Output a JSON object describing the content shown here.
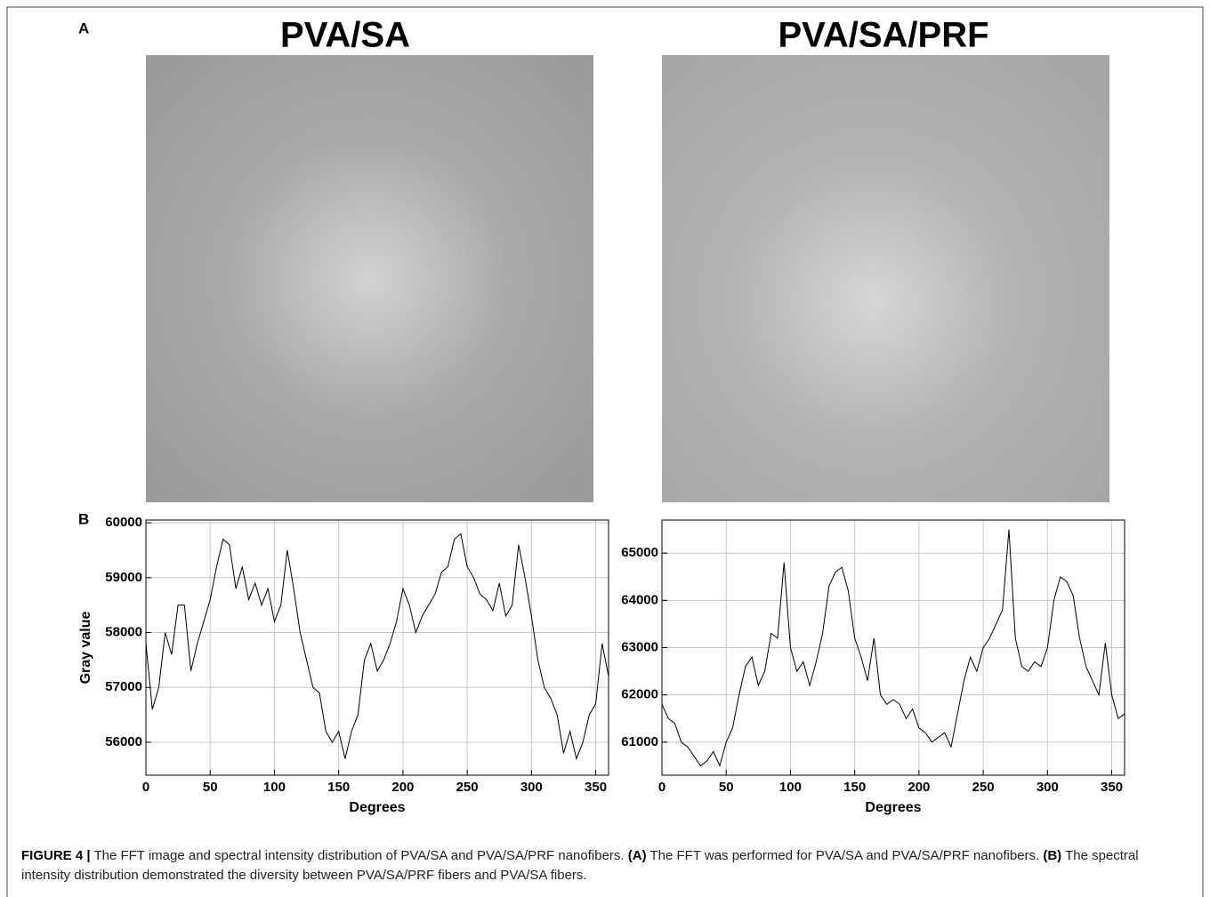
{
  "panel_labels": [
    "A",
    "B"
  ],
  "image_titles": [
    "PVA/SA",
    "PVA/SA/PRF"
  ],
  "chart_data": [
    {
      "type": "line",
      "xlabel": "Degrees",
      "ylabel": "Gray value",
      "x": [
        0,
        5,
        10,
        15,
        20,
        25,
        30,
        35,
        40,
        45,
        50,
        55,
        60,
        65,
        70,
        75,
        80,
        85,
        90,
        95,
        100,
        105,
        110,
        115,
        120,
        125,
        130,
        135,
        140,
        145,
        150,
        155,
        160,
        165,
        170,
        175,
        180,
        185,
        190,
        195,
        200,
        205,
        210,
        215,
        220,
        225,
        230,
        235,
        240,
        245,
        250,
        255,
        260,
        265,
        270,
        275,
        280,
        285,
        290,
        295,
        300,
        305,
        310,
        315,
        320,
        325,
        330,
        335,
        340,
        345,
        350,
        355,
        360
      ],
      "series": [
        {
          "color": "#000000",
          "values": [
            57800,
            56600,
            57000,
            58000,
            57600,
            58500,
            58500,
            57300,
            57800,
            58200,
            58600,
            59200,
            59700,
            59600,
            58800,
            59200,
            58600,
            58900,
            58500,
            58800,
            58200,
            58500,
            59500,
            58800,
            58000,
            57500,
            57000,
            56900,
            56200,
            56000,
            56200,
            55700,
            56200,
            56500,
            57500,
            57800,
            57300,
            57500,
            57800,
            58200,
            58800,
            58500,
            58000,
            58300,
            58500,
            58700,
            59100,
            59200,
            59700,
            59800,
            59200,
            59000,
            58700,
            58600,
            58400,
            58900,
            58300,
            58500,
            59600,
            59000,
            58300,
            57500,
            57000,
            56800,
            56500,
            55800,
            56200,
            55700,
            56000,
            56500,
            56700,
            57800,
            57200
          ]
        }
      ],
      "xlim": [
        0,
        360
      ],
      "ylim": [
        55400,
        60050
      ],
      "xticks": [
        0,
        50,
        100,
        150,
        200,
        250,
        300,
        350
      ],
      "yticks": [
        56000,
        57000,
        58000,
        59000,
        60000
      ],
      "grid": true
    },
    {
      "type": "line",
      "xlabel": "Degrees",
      "x": [
        0,
        5,
        10,
        15,
        20,
        25,
        30,
        35,
        40,
        45,
        50,
        55,
        60,
        65,
        70,
        75,
        80,
        85,
        90,
        95,
        100,
        105,
        110,
        115,
        120,
        125,
        130,
        135,
        140,
        145,
        150,
        155,
        160,
        165,
        170,
        175,
        180,
        185,
        190,
        195,
        200,
        205,
        210,
        215,
        220,
        225,
        230,
        235,
        240,
        245,
        250,
        255,
        260,
        265,
        270,
        275,
        280,
        285,
        290,
        295,
        300,
        305,
        310,
        315,
        320,
        325,
        330,
        335,
        340,
        345,
        350,
        355,
        360
      ],
      "series": [
        {
          "color": "#000000",
          "values": [
            61800,
            61500,
            61400,
            61000,
            60900,
            60700,
            60500,
            60600,
            60800,
            60500,
            61000,
            61300,
            62000,
            62600,
            62800,
            62200,
            62500,
            63300,
            63200,
            64800,
            63000,
            62500,
            62700,
            62200,
            62700,
            63300,
            64300,
            64600,
            64700,
            64200,
            63200,
            62800,
            62300,
            63200,
            62000,
            61800,
            61900,
            61800,
            61500,
            61700,
            61300,
            61200,
            61000,
            61100,
            61200,
            60900,
            61600,
            62300,
            62800,
            62500,
            63000,
            63200,
            63500,
            63800,
            65500,
            63200,
            62600,
            62500,
            62700,
            62600,
            63000,
            64000,
            64500,
            64400,
            64100,
            63200,
            62600,
            62300,
            62000,
            63100,
            62000,
            61500,
            61600
          ]
        }
      ],
      "xlim": [
        0,
        360
      ],
      "ylim": [
        60300,
        65700
      ],
      "xticks": [
        0,
        50,
        100,
        150,
        200,
        250,
        300,
        350
      ],
      "yticks": [
        61000,
        62000,
        63000,
        64000,
        65000
      ],
      "grid": true
    }
  ],
  "caption": [
    {
      "text": "FIGURE 4 |",
      "bold": true
    },
    {
      "text": " The FFT image and spectral intensity distribution of PVA/SA and PVA/SA/PRF nanofibers. ",
      "bold": false
    },
    {
      "text": "(A)",
      "bold": true
    },
    {
      "text": " The FFT was performed for PVA/SA and PVA/SA/PRF nanofibers. ",
      "bold": false
    },
    {
      "text": "(B)",
      "bold": true
    },
    {
      "text": " The spectral intensity distribution demonstrated the diversity between PVA/SA/PRF fibers and PVA/SA fibers.",
      "bold": false
    }
  ]
}
